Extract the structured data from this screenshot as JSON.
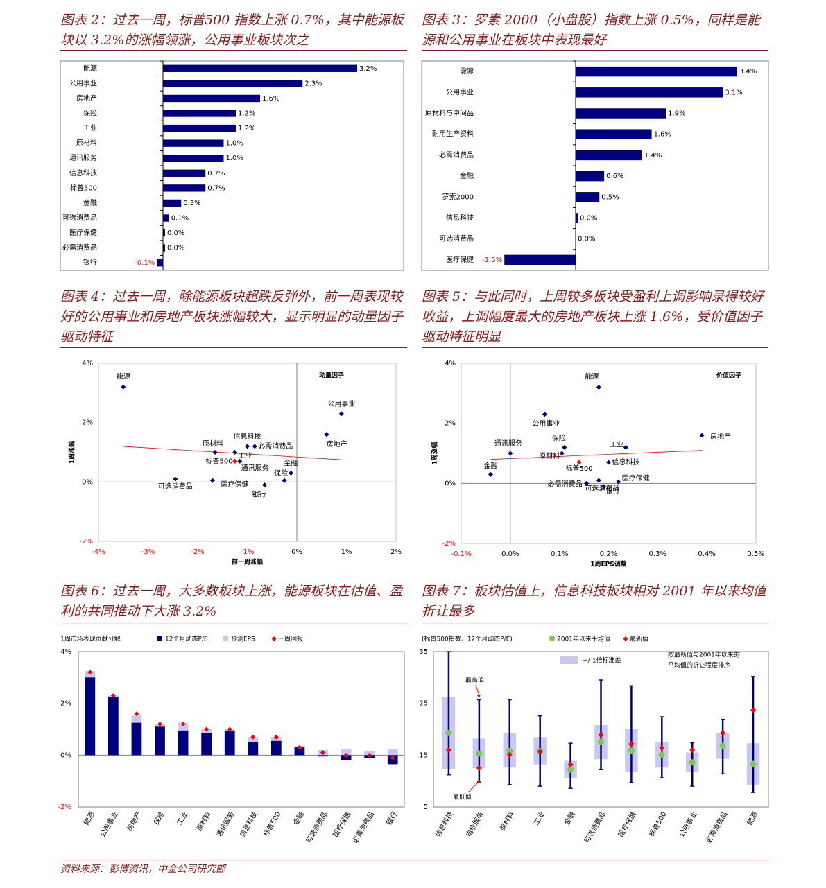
{
  "titles": {
    "t2": "图表 2：过去一周，标普500 指数上涨 0.7%，其中能源板块以 3.2%的涨幅领涨，公用事业板块次之",
    "t3": "图表 3：罗素 2000（小盘股）指数上涨 0.5%，同样是能源和公用事业在板块中表现最好",
    "t4": "图表 4：过去一周，除能源板块超跌反弹外，前一周表现较好的公用事业和房地产板块涨幅较大，显示明显的动量因子驱动特征",
    "t5": "图表 5：与此同时，上周较多板块受盈利上调影响录得较好收益，上调幅度最大的房地产板块上涨 1.6%，受价值因子驱动特征明显",
    "t6": "图表 6：过去一周，大多数板块上涨，能源板块在估值、盈利的共同推动下大涨 3.2%",
    "t7": "图表 7：板块估值上，信息科技板块相对 2001 年以来均值折让最多"
  },
  "source": "资料来源：彭博资讯，中金公司研究部",
  "colors": {
    "navy": "#00007f",
    "accent": "#8b1a1a",
    "red": "#ff0000",
    "light": "#c8c8f0",
    "green": "#7ec850"
  },
  "chart_data": [
    {
      "id": "c2",
      "type": "bar",
      "categories": [
        "能源",
        "公用事业",
        "房地产",
        "保险",
        "工业",
        "原材料",
        "通讯服务",
        "信息科技",
        "标普500",
        "金融",
        "可选消费品",
        "医疗保健",
        "必需消费品",
        "银行"
      ],
      "values": [
        3.2,
        2.3,
        1.6,
        1.2,
        1.2,
        1.0,
        1.0,
        0.7,
        0.7,
        0.3,
        0.1,
        0.0,
        0.0,
        -0.1
      ],
      "labels": [
        "3.2%",
        "2.3%",
        "1.6%",
        "1.2%",
        "1.2%",
        "1.0%",
        "1.0%",
        "0.7%",
        "0.7%",
        "0.3%",
        "0.1%",
        "0.0%",
        "0.0%",
        "-0.1%"
      ]
    },
    {
      "id": "c3",
      "type": "bar",
      "categories": [
        "能源",
        "公用事业",
        "原材料与中间品",
        "耐用生产资料",
        "必需消费品",
        "金融",
        "罗素2000",
        "信息科技",
        "可选消费品",
        "医疗保健"
      ],
      "values": [
        3.4,
        3.1,
        1.9,
        1.6,
        1.4,
        0.6,
        0.5,
        0.0,
        0.0,
        -1.5
      ],
      "labels": [
        "3.4%",
        "3.1%",
        "1.9%",
        "1.6%",
        "1.4%",
        "0.6%",
        "0.5%",
        "0.0%",
        "0.0%",
        "-1.5%"
      ]
    },
    {
      "id": "c4",
      "type": "scatter",
      "legend": "动量因子",
      "xlabel": "前一周涨幅",
      "ylabel": "1周涨幅",
      "xlim": [
        -4,
        2
      ],
      "ylim": [
        -2,
        4
      ],
      "xticks": [
        "-4%",
        "-3%",
        "-2%",
        "-1%",
        "0%",
        "1%",
        "2%"
      ],
      "yticks": [
        "-2%",
        "0%",
        "2%",
        "4%"
      ],
      "points": [
        {
          "name": "能源",
          "x": -3.5,
          "y": 3.2
        },
        {
          "name": "公用事业",
          "x": 0.9,
          "y": 2.3
        },
        {
          "name": "房地产",
          "x": 0.6,
          "y": 1.6
        },
        {
          "name": "信息科技",
          "x": -1.0,
          "y": 1.2
        },
        {
          "name": "必需消费品",
          "x": -0.85,
          "y": 1.2
        },
        {
          "name": "原材料",
          "x": -1.65,
          "y": 1.0
        },
        {
          "name": "工业",
          "x": -1.25,
          "y": 1.0
        },
        {
          "name": "标普500",
          "x": -1.25,
          "y": 0.7
        },
        {
          "name": "通讯服务",
          "x": -1.15,
          "y": 0.7
        },
        {
          "name": "金融",
          "x": -0.12,
          "y": 0.3
        },
        {
          "name": "保险",
          "x": -0.25,
          "y": 0.05
        },
        {
          "name": "可选消费品",
          "x": -2.45,
          "y": 0.1
        },
        {
          "name": "医疗保健",
          "x": -1.7,
          "y": 0.05
        },
        {
          "name": "银行",
          "x": -0.65,
          "y": -0.1
        }
      ],
      "trend": [
        [
          -3.5,
          1.2
        ],
        [
          0.9,
          0.75
        ]
      ]
    },
    {
      "id": "c5",
      "type": "scatter",
      "legend": "价值因子",
      "xlabel": "1周EPS调整",
      "ylabel": "1周涨幅",
      "xlim": [
        -0.1,
        0.5
      ],
      "ylim": [
        -2,
        4
      ],
      "xticks": [
        "-0.1%",
        "0.0%",
        "0.1%",
        "0.2%",
        "0.3%",
        "0.4%",
        "0.5%"
      ],
      "yticks": [
        "-2%",
        "0%",
        "2%",
        "4%"
      ],
      "points": [
        {
          "name": "能源",
          "x": 0.18,
          "y": 3.2
        },
        {
          "name": "公用事业",
          "x": 0.07,
          "y": 2.3
        },
        {
          "name": "房地产",
          "x": 0.39,
          "y": 1.6
        },
        {
          "name": "通讯服务",
          "x": 0.0,
          "y": 1.0
        },
        {
          "name": "保险",
          "x": 0.11,
          "y": 1.2
        },
        {
          "name": "原材料",
          "x": 0.105,
          "y": 1.0
        },
        {
          "name": "工业",
          "x": 0.235,
          "y": 1.2
        },
        {
          "name": "信息科技",
          "x": 0.2,
          "y": 0.7
        },
        {
          "name": "标普500",
          "x": 0.14,
          "y": 0.7
        },
        {
          "name": "金融",
          "x": -0.04,
          "y": 0.3
        },
        {
          "name": "必需消费品",
          "x": 0.155,
          "y": 0.0
        },
        {
          "name": "医疗保健",
          "x": 0.22,
          "y": 0.05
        },
        {
          "name": "银行",
          "x": 0.19,
          "y": -0.1
        },
        {
          "name": "可选消费品",
          "x": 0.18,
          "y": 0.1
        }
      ],
      "trend": [
        [
          -0.04,
          0.8
        ],
        [
          0.39,
          1.1
        ]
      ]
    },
    {
      "id": "c6",
      "type": "bar",
      "title": "1周市场表现贡献分解",
      "series_names": [
        "12个月动态P/E",
        "预测EPS",
        "一周回报"
      ],
      "categories": [
        "能源",
        "公用事业",
        "房地产",
        "保险",
        "工业",
        "原材料",
        "通讯服务",
        "信息科技",
        "标普500",
        "金融",
        "可选消费品",
        "医疗保健",
        "必需消费品",
        "银行"
      ],
      "pe": [
        3.0,
        2.25,
        1.25,
        1.1,
        0.95,
        0.85,
        0.95,
        0.5,
        0.55,
        0.3,
        -0.05,
        -0.2,
        -0.1,
        -0.35
      ],
      "eps": [
        0.25,
        0.05,
        0.3,
        0.1,
        0.3,
        0.15,
        0.05,
        0.2,
        0.15,
        0.05,
        0.2,
        0.25,
        0.15,
        0.25
      ],
      "ret": [
        3.2,
        2.3,
        1.6,
        1.2,
        1.2,
        1.0,
        1.0,
        0.7,
        0.7,
        0.3,
        0.1,
        0.0,
        0.0,
        -0.1
      ],
      "ylim": [
        -2,
        4
      ],
      "yticks": [
        "-2%",
        "0%",
        "2%",
        "4%"
      ]
    },
    {
      "id": "c7",
      "type": "range",
      "title": "(标普500指数，12个月动态P/E)",
      "legend": [
        "2001年以来平均值",
        "最新值",
        "+/-1倍标准差"
      ],
      "note": "按最新值与2001年以来的平均值的折让程度排序",
      "ann_high": "最高值",
      "ann_low": "最低值",
      "ylim": [
        5,
        35
      ],
      "yticks": [
        "5",
        "15",
        "25",
        "35"
      ],
      "categories": [
        "信息科技",
        "电信服务",
        "原材料",
        "工业",
        "金融",
        "可选消费品",
        "医疗保健",
        "标普500",
        "公用事业",
        "必需消费品",
        "能源"
      ],
      "min": [
        11.2,
        9.8,
        9.3,
        9.0,
        8.6,
        12.2,
        9.7,
        10.6,
        9.0,
        11.4,
        7.8
      ],
      "max": [
        35.0,
        25.7,
        25.7,
        22.6,
        17.3,
        29.5,
        28.4,
        22.4,
        17.4,
        21.9,
        30.2
      ],
      "mean": [
        19.3,
        15.3,
        15.8,
        15.8,
        12.2,
        17.6,
        15.9,
        15.1,
        13.6,
        16.8,
        13.3
      ],
      "sd_low": [
        12.3,
        12.5,
        12.6,
        13.2,
        10.6,
        14.2,
        11.8,
        12.6,
        11.8,
        14.3,
        9.3
      ],
      "sd_high": [
        26.3,
        18.2,
        19.3,
        18.5,
        13.9,
        20.8,
        20.0,
        17.5,
        15.5,
        19.3,
        17.3
      ],
      "latest": [
        16.0,
        12.5,
        15.1,
        15.7,
        13.2,
        18.9,
        17.2,
        16.4,
        16.0,
        19.3,
        23.7
      ]
    }
  ]
}
